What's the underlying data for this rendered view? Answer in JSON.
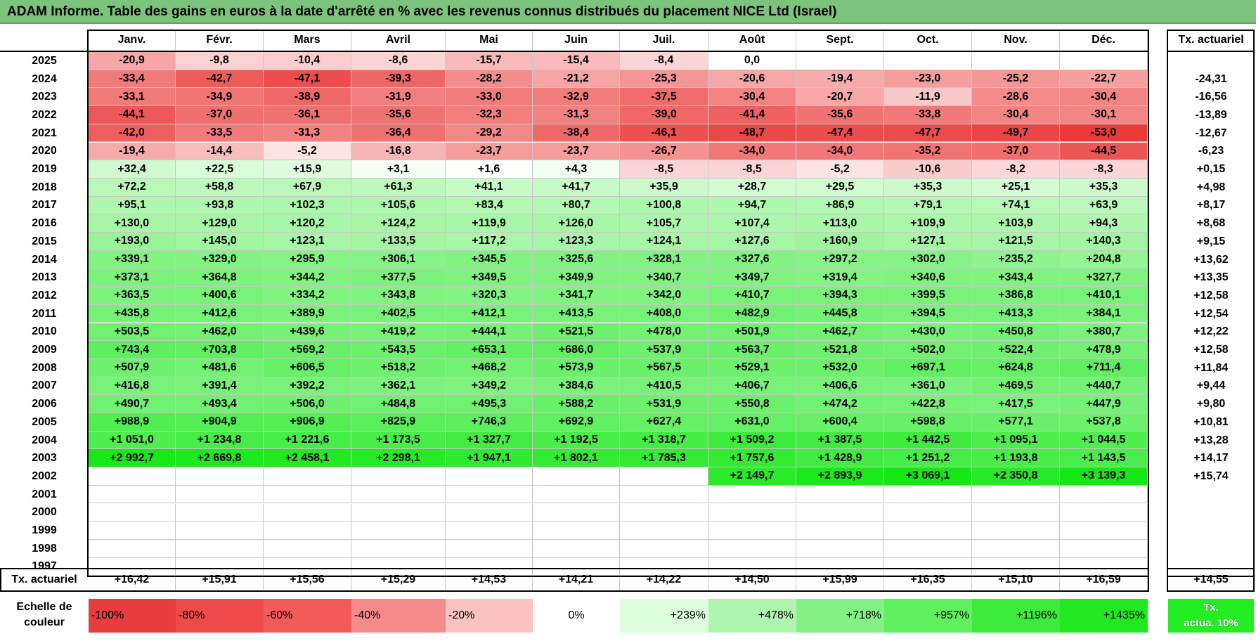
{
  "title": "ADAM Informe. Table des gains en euros à la date d'arrêté en % avec les revenus connus distribués du placement NICE Ltd (Israel)",
  "months": [
    "Janv.",
    "Févr.",
    "Mars",
    "Avril",
    "Mai",
    "Juin",
    "Juil.",
    "Août",
    "Sept.",
    "Oct.",
    "Nov.",
    "Déc."
  ],
  "tx_header": "Tx. actuariel",
  "rows": [
    {
      "year": "2025",
      "values": [
        "-20,9",
        "-9,8",
        "-10,4",
        "-8,6",
        "-15,7",
        "-15,4",
        "-8,4",
        "0,0",
        "",
        "",
        "",
        ""
      ],
      "tx": ""
    },
    {
      "year": "2024",
      "values": [
        "-33,4",
        "-42,7",
        "-47,1",
        "-39,3",
        "-28,2",
        "-21,2",
        "-25,3",
        "-20,6",
        "-19,4",
        "-23,0",
        "-25,2",
        "-22,7"
      ],
      "tx": "-24,31"
    },
    {
      "year": "2023",
      "values": [
        "-33,1",
        "-34,9",
        "-38,9",
        "-31,9",
        "-33,0",
        "-32,9",
        "-37,5",
        "-30,4",
        "-20,7",
        "-11,9",
        "-28,6",
        "-30,4"
      ],
      "tx": "-16,56"
    },
    {
      "year": "2022",
      "values": [
        "-44,1",
        "-37,0",
        "-36,1",
        "-35,6",
        "-32,3",
        "-31,3",
        "-39,0",
        "-41,4",
        "-35,6",
        "-33,8",
        "-30,4",
        "-30,1"
      ],
      "tx": "-13,89"
    },
    {
      "year": "2021",
      "values": [
        "-42,0",
        "-33,5",
        "-31,3",
        "-36,4",
        "-29,2",
        "-38,4",
        "-46,1",
        "-48,7",
        "-47,4",
        "-47,7",
        "-49,7",
        "-53,0"
      ],
      "tx": "-12,67"
    },
    {
      "year": "2020",
      "values": [
        "-19,4",
        "-14,4",
        "-5,2",
        "-16,8",
        "-23,7",
        "-23,7",
        "-26,7",
        "-34,0",
        "-34,0",
        "-35,2",
        "-37,0",
        "-44,5"
      ],
      "tx": "-6,23"
    },
    {
      "year": "2019",
      "values": [
        "+32,4",
        "+22,5",
        "+15,9",
        "+3,1",
        "+1,6",
        "+4,3",
        "-8,5",
        "-8,5",
        "-5,2",
        "-10,6",
        "-8,2",
        "-8,3"
      ],
      "tx": "+0,15"
    },
    {
      "year": "2018",
      "values": [
        "+72,2",
        "+58,8",
        "+67,9",
        "+61,3",
        "+41,1",
        "+41,7",
        "+35,9",
        "+28,7",
        "+29,5",
        "+35,3",
        "+25,1",
        "+35,3"
      ],
      "tx": "+4,98"
    },
    {
      "year": "2017",
      "values": [
        "+95,1",
        "+93,8",
        "+102,3",
        "+105,6",
        "+83,4",
        "+80,7",
        "+100,8",
        "+94,7",
        "+86,9",
        "+79,1",
        "+74,1",
        "+63,9"
      ],
      "tx": "+8,17"
    },
    {
      "year": "2016",
      "values": [
        "+130,0",
        "+129,0",
        "+120,2",
        "+124,2",
        "+119,9",
        "+126,0",
        "+105,7",
        "+107,4",
        "+113,0",
        "+109,9",
        "+103,9",
        "+94,3"
      ],
      "tx": "+8,68"
    },
    {
      "year": "2015",
      "values": [
        "+193,0",
        "+145,0",
        "+123,1",
        "+133,5",
        "+117,2",
        "+123,3",
        "+124,1",
        "+127,6",
        "+160,9",
        "+127,1",
        "+121,5",
        "+140,3"
      ],
      "tx": "+9,15"
    },
    {
      "year": "2014",
      "values": [
        "+339,1",
        "+329,0",
        "+295,9",
        "+306,1",
        "+345,5",
        "+325,6",
        "+328,1",
        "+327,6",
        "+297,2",
        "+302,0",
        "+235,2",
        "+204,8"
      ],
      "tx": "+13,62"
    },
    {
      "year": "2013",
      "values": [
        "+373,1",
        "+364,8",
        "+344,2",
        "+377,5",
        "+349,5",
        "+349,9",
        "+340,7",
        "+349,7",
        "+319,4",
        "+340,6",
        "+343,4",
        "+327,7"
      ],
      "tx": "+13,35"
    },
    {
      "year": "2012",
      "values": [
        "+363,5",
        "+400,6",
        "+334,2",
        "+343,8",
        "+320,3",
        "+341,7",
        "+342,0",
        "+410,7",
        "+394,3",
        "+399,5",
        "+386,8",
        "+410,1"
      ],
      "tx": "+12,58"
    },
    {
      "year": "2011",
      "values": [
        "+435,8",
        "+412,6",
        "+389,9",
        "+402,5",
        "+412,1",
        "+413,5",
        "+408,0",
        "+482,9",
        "+445,8",
        "+394,5",
        "+413,3",
        "+384,1"
      ],
      "tx": "+12,54"
    },
    {
      "year": "2010",
      "values": [
        "+503,5",
        "+462,0",
        "+439,6",
        "+419,2",
        "+444,1",
        "+521,5",
        "+478,0",
        "+501,9",
        "+462,7",
        "+430,0",
        "+450,8",
        "+380,7"
      ],
      "tx": "+12,22"
    },
    {
      "year": "2009",
      "values": [
        "+743,4",
        "+703,8",
        "+569,2",
        "+543,5",
        "+653,1",
        "+686,0",
        "+537,9",
        "+563,7",
        "+521,8",
        "+502,0",
        "+522,4",
        "+478,9"
      ],
      "tx": "+12,58"
    },
    {
      "year": "2008",
      "values": [
        "+507,9",
        "+481,6",
        "+606,5",
        "+518,2",
        "+468,2",
        "+573,9",
        "+567,5",
        "+529,1",
        "+532,0",
        "+697,1",
        "+624,8",
        "+711,4"
      ],
      "tx": "+11,84"
    },
    {
      "year": "2007",
      "values": [
        "+416,8",
        "+391,4",
        "+392,2",
        "+362,1",
        "+349,2",
        "+384,6",
        "+410,5",
        "+406,7",
        "+406,6",
        "+361,0",
        "+469,5",
        "+440,7"
      ],
      "tx": "+9,44"
    },
    {
      "year": "2006",
      "values": [
        "+490,7",
        "+493,4",
        "+506,0",
        "+484,8",
        "+495,3",
        "+588,2",
        "+531,9",
        "+550,8",
        "+474,2",
        "+422,8",
        "+417,5",
        "+447,9"
      ],
      "tx": "+9,80"
    },
    {
      "year": "2005",
      "values": [
        "+988,9",
        "+904,9",
        "+906,9",
        "+825,9",
        "+746,3",
        "+692,9",
        "+627,4",
        "+631,0",
        "+600,4",
        "+598,8",
        "+577,1",
        "+537,8"
      ],
      "tx": "+10,81"
    },
    {
      "year": "2004",
      "values": [
        "+1 051,0",
        "+1 234,8",
        "+1 221,6",
        "+1 173,5",
        "+1 327,7",
        "+1 192,5",
        "+1 318,7",
        "+1 509,2",
        "+1 387,5",
        "+1 442,5",
        "+1 095,1",
        "+1 044,5"
      ],
      "tx": "+13,28"
    },
    {
      "year": "2003",
      "values": [
        "+2 992,7",
        "+2 669,8",
        "+2 458,1",
        "+2 298,1",
        "+1 947,1",
        "+1 802,1",
        "+1 785,3",
        "+1 757,6",
        "+1 428,9",
        "+1 251,2",
        "+1 193,8",
        "+1 143,5"
      ],
      "tx": "+14,17"
    },
    {
      "year": "2002",
      "values": [
        "",
        "",
        "",
        "",
        "",
        "",
        "",
        "+2 149,7",
        "+2 893,9",
        "+3 069,1",
        "+2 350,8",
        "+3 139,3"
      ],
      "tx": "+15,74"
    },
    {
      "year": "2001",
      "values": [
        "",
        "",
        "",
        "",
        "",
        "",
        "",
        "",
        "",
        "",
        "",
        ""
      ],
      "tx": ""
    },
    {
      "year": "2000",
      "values": [
        "",
        "",
        "",
        "",
        "",
        "",
        "",
        "",
        "",
        "",
        "",
        ""
      ],
      "tx": ""
    },
    {
      "year": "1999",
      "values": [
        "",
        "",
        "",
        "",
        "",
        "",
        "",
        "",
        "",
        "",
        "",
        ""
      ],
      "tx": ""
    },
    {
      "year": "1998",
      "values": [
        "",
        "",
        "",
        "",
        "",
        "",
        "",
        "",
        "",
        "",
        "",
        ""
      ],
      "tx": ""
    },
    {
      "year": "1997",
      "values": [
        "",
        "",
        "",
        "",
        "",
        "",
        "",
        "",
        "",
        "",
        "",
        ""
      ],
      "tx": ""
    }
  ],
  "tx_row": {
    "label": "Tx. actuariel",
    "values": [
      "+16,42",
      "+15,91",
      "+15,56",
      "+15,29",
      "+14,53",
      "+14,21",
      "+14,22",
      "+14,50",
      "+15,99",
      "+16,35",
      "+15,10",
      "+16,59"
    ],
    "total": "+14,55"
  },
  "legend": {
    "label_line1": "Echelle de",
    "label_line2": "couleur",
    "items": [
      {
        "text": "-100%",
        "color": "#e93c3c",
        "align": "left"
      },
      {
        "text": "-80%",
        "color": "#ee4a4a",
        "align": "left"
      },
      {
        "text": "-60%",
        "color": "#f45a5a",
        "align": "left"
      },
      {
        "text": "-40%",
        "color": "#f58a8a",
        "align": "left"
      },
      {
        "text": "-20%",
        "color": "#fbc2c2",
        "align": "left"
      },
      {
        "text": "0%",
        "color": "#ffffff",
        "align": "center"
      },
      {
        "text": "+239%",
        "color": "#dcffdc",
        "align": "right"
      },
      {
        "text": "+478%",
        "color": "#aef5ae",
        "align": "right"
      },
      {
        "text": "+718%",
        "color": "#84f184",
        "align": "right"
      },
      {
        "text": "+957%",
        "color": "#5ef05e",
        "align": "right"
      },
      {
        "text": "+1196%",
        "color": "#3ceb3c",
        "align": "right"
      },
      {
        "text": "+1435%",
        "color": "#22e822",
        "align": "right"
      }
    ],
    "tx_box_line1": "Tx.",
    "tx_box_line2": "actua. 10%",
    "tx_box_color": "#22ee22"
  },
  "colors": {
    "title_bg": "#7cc47c"
  }
}
